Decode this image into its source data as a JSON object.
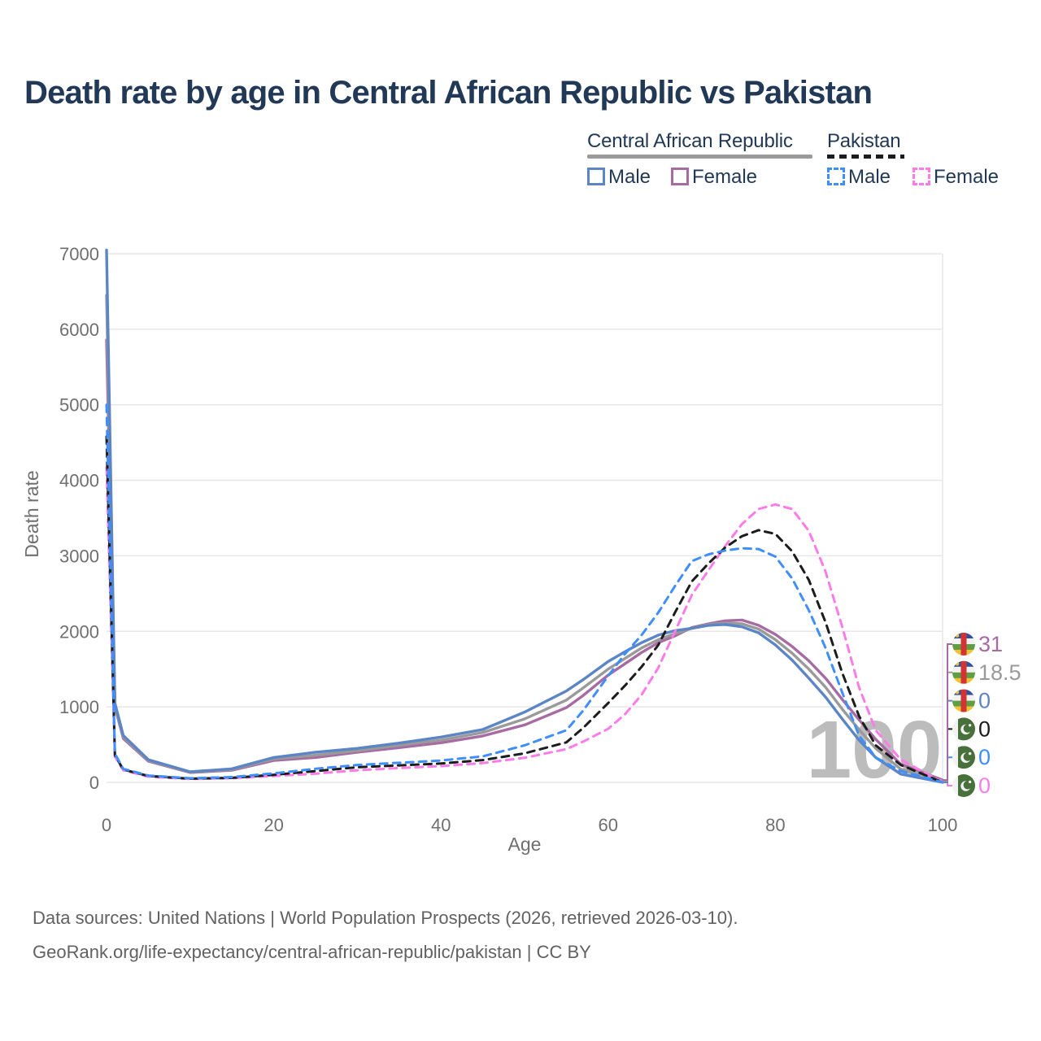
{
  "title": "Death rate by age in Central African Republic vs Pakistan",
  "legend": {
    "groups": [
      {
        "label": "Central African Republic",
        "line_style": "solid",
        "line_color": "#9a9a9a",
        "items": [
          {
            "label": "Male",
            "color": "#5b85c4",
            "dashed": false
          },
          {
            "label": "Female",
            "color": "#a76ba3",
            "dashed": false
          }
        ]
      },
      {
        "label": "Pakistan",
        "line_style": "dashed",
        "line_color": "#1c1c1c",
        "items": [
          {
            "label": "Male",
            "color": "#3f8efd",
            "dashed": true
          },
          {
            "label": "Female",
            "color": "#fb7ce8",
            "dashed": true
          }
        ]
      }
    ]
  },
  "chart_data": {
    "type": "line",
    "title": "Death rate by age in Central African Republic vs Pakistan",
    "xlabel": "Age",
    "ylabel": "Death rate",
    "xlim": [
      0,
      100
    ],
    "ylim": [
      0,
      7000
    ],
    "x_ticks": [
      0,
      20,
      40,
      60,
      80,
      100
    ],
    "y_ticks": [
      0,
      1000,
      2000,
      3000,
      4000,
      5000,
      6000,
      7000
    ],
    "grid": "horizontal",
    "legend_position": "top-right",
    "watermark": "100",
    "x": [
      0,
      1,
      2,
      5,
      10,
      15,
      20,
      25,
      30,
      35,
      40,
      45,
      50,
      55,
      57,
      60,
      62,
      64,
      66,
      68,
      70,
      72,
      74,
      76,
      78,
      80,
      82,
      84,
      86,
      88,
      90,
      92,
      95,
      100
    ],
    "series": [
      {
        "name": "Central African Republic Female",
        "color": "#a76ba3",
        "dash": "solid",
        "values": [
          5860,
          1000,
          580,
          280,
          130,
          160,
          290,
          330,
          400,
          460,
          525,
          615,
          760,
          990,
          1150,
          1420,
          1570,
          1720,
          1850,
          1940,
          2050,
          2100,
          2140,
          2150,
          2080,
          1960,
          1800,
          1610,
          1380,
          1100,
          830,
          570,
          240,
          31
        ]
      },
      {
        "name": "Central African Republic Both sexes",
        "color": "#9a9a9a",
        "dash": "solid",
        "values": [
          6450,
          1020,
          600,
          290,
          135,
          170,
          310,
          360,
          420,
          490,
          560,
          660,
          840,
          1090,
          1250,
          1500,
          1640,
          1780,
          1890,
          1970,
          2040,
          2090,
          2110,
          2100,
          2030,
          1890,
          1710,
          1500,
          1260,
          970,
          700,
          450,
          175,
          18.5
        ]
      },
      {
        "name": "Central African Republic Male",
        "color": "#5b85c4",
        "dash": "solid",
        "values": [
          7050,
          1050,
          620,
          300,
          140,
          180,
          330,
          400,
          450,
          520,
          600,
          700,
          930,
          1210,
          1360,
          1600,
          1730,
          1850,
          1950,
          2010,
          2040,
          2080,
          2090,
          2060,
          1980,
          1820,
          1620,
          1380,
          1130,
          840,
          560,
          330,
          110,
          0
        ]
      },
      {
        "name": "Pakistan Female",
        "color": "#fb7ce8",
        "dash": "dashed",
        "values": [
          4170,
          340,
          160,
          75,
          45,
          55,
          85,
          115,
          160,
          190,
          215,
          255,
          325,
          440,
          540,
          710,
          900,
          1160,
          1520,
          2000,
          2480,
          2810,
          3130,
          3420,
          3620,
          3680,
          3620,
          3330,
          2790,
          2060,
          1260,
          690,
          300,
          0
        ]
      },
      {
        "name": "Pakistan Both sexes",
        "color": "#1c1c1c",
        "dash": "dashed",
        "values": [
          4580,
          360,
          170,
          85,
          50,
          60,
          100,
          150,
          200,
          225,
          250,
          295,
          385,
          530,
          720,
          1050,
          1280,
          1530,
          1820,
          2250,
          2660,
          2900,
          3110,
          3260,
          3340,
          3290,
          3060,
          2680,
          2120,
          1450,
          880,
          490,
          230,
          0
        ]
      },
      {
        "name": "Pakistan Male",
        "color": "#3f8efd",
        "dash": "dashed",
        "values": [
          5000,
          380,
          180,
          90,
          55,
          70,
          120,
          180,
          230,
          260,
          290,
          345,
          490,
          690,
          950,
          1410,
          1700,
          1950,
          2250,
          2600,
          2930,
          3020,
          3070,
          3100,
          3090,
          2990,
          2700,
          2280,
          1780,
          1190,
          620,
          330,
          150,
          0
        ]
      }
    ],
    "endpoint_labels": [
      {
        "value": "31",
        "end_value": 31,
        "flag": "central-african-republic",
        "color": "#a76ba3"
      },
      {
        "value": "18.5",
        "end_value": 18.5,
        "flag": "central-african-republic",
        "color": "#9a9a9a"
      },
      {
        "value": "0",
        "end_value": 0,
        "flag": "central-african-republic",
        "color": "#5b85c4"
      },
      {
        "value": "0",
        "end_value": 0,
        "flag": "pakistan",
        "color": "#1c1c1c"
      },
      {
        "value": "0",
        "end_value": 0,
        "flag": "pakistan",
        "color": "#3f8efd"
      },
      {
        "value": "0",
        "end_value": 0,
        "flag": "pakistan",
        "color": "#fb7ce8"
      }
    ]
  },
  "footer": {
    "line1": "Data sources: United Nations | World Population Prospects (2026, retrieved 2026-03-10).",
    "line2": "GeoRank.org/life-expectancy/central-african-republic/pakistan | CC BY"
  }
}
